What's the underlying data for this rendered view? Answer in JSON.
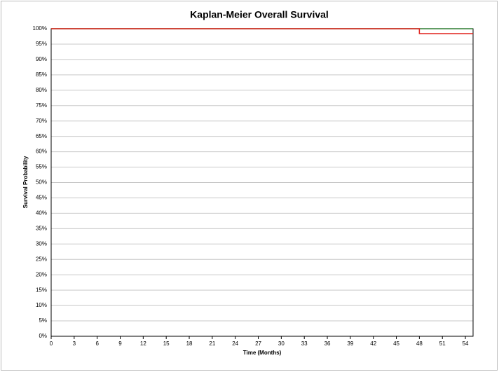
{
  "chart_data": {
    "type": "line",
    "line_style": "step",
    "title": "Kaplan-Meier Overall Survival",
    "xlabel": "Time (Months)",
    "ylabel": "Survival Probability",
    "series": [
      {
        "color": "#2e7d32",
        "x": [
          0,
          55
        ],
        "values": [
          100,
          100
        ]
      },
      {
        "color": "#e0201b",
        "x": [
          0,
          48,
          55
        ],
        "values": [
          100,
          98.4,
          98.4
        ]
      }
    ],
    "xlim": [
      0,
      55
    ],
    "xticks": [
      0,
      3,
      6,
      9,
      12,
      15,
      18,
      21,
      24,
      27,
      30,
      33,
      36,
      39,
      42,
      45,
      48,
      51,
      54
    ],
    "ylim": [
      0,
      100
    ],
    "yticks": [
      {
        "value": 0,
        "label": "0%"
      },
      {
        "value": 5,
        "label": "5%"
      },
      {
        "value": 10,
        "label": "10%"
      },
      {
        "value": 15,
        "label": "15%"
      },
      {
        "value": 20,
        "label": "20%"
      },
      {
        "value": 25,
        "label": "25%"
      },
      {
        "value": 30,
        "label": "30%"
      },
      {
        "value": 35,
        "label": "35%"
      },
      {
        "value": 40,
        "label": "40%"
      },
      {
        "value": 45,
        "label": "45%"
      },
      {
        "value": 50,
        "label": "50%"
      },
      {
        "value": 55,
        "label": "55%"
      },
      {
        "value": 60,
        "label": "60%"
      },
      {
        "value": 65,
        "label": "65%"
      },
      {
        "value": 70,
        "label": "70%"
      },
      {
        "value": 75,
        "label": "75%"
      },
      {
        "value": 80,
        "label": "80%"
      },
      {
        "value": 85,
        "label": "85%"
      },
      {
        "value": 90,
        "label": "90%"
      },
      {
        "value": 95,
        "label": "95%"
      },
      {
        "value": 100,
        "label": "100%"
      }
    ],
    "grid": true
  }
}
